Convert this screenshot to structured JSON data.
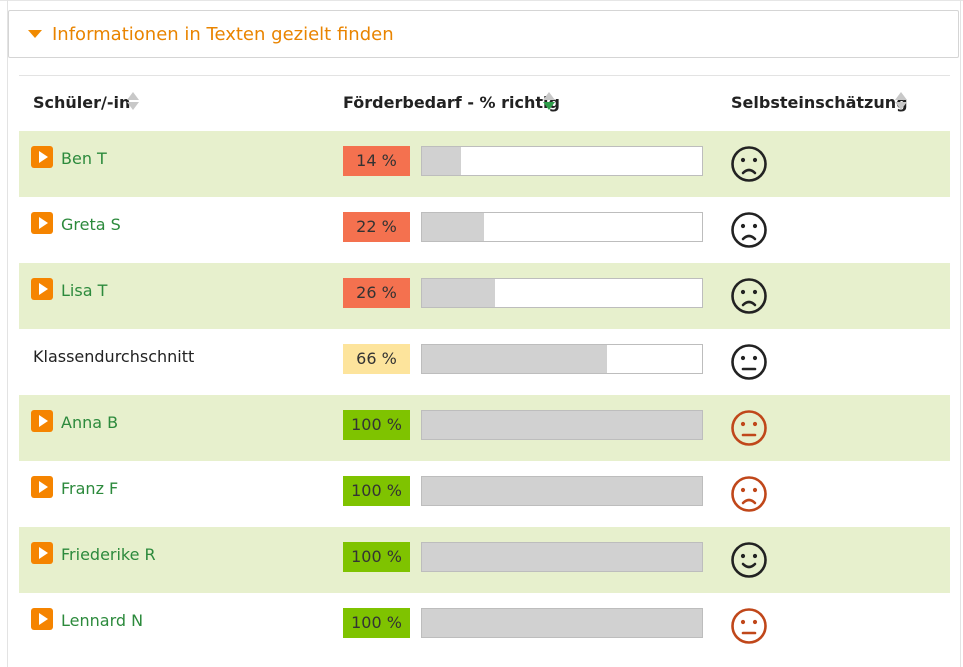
{
  "panel": {
    "title": "Informationen in Texten gezielt finden"
  },
  "table": {
    "headers": {
      "student": "Schüler/-in",
      "need": "Förderbedarf - % richtig",
      "self": "Selbsteinschätzung"
    },
    "rows": [
      {
        "name": "Ben T",
        "percent_label": "14 %",
        "percent": 14,
        "level": "low",
        "mood": "sad",
        "mood_color": "#222222",
        "has_play": true
      },
      {
        "name": "Greta S",
        "percent_label": "22 %",
        "percent": 22,
        "level": "low",
        "mood": "sad",
        "mood_color": "#222222",
        "has_play": true
      },
      {
        "name": "Lisa T",
        "percent_label": "26 %",
        "percent": 26,
        "level": "low",
        "mood": "sad",
        "mood_color": "#222222",
        "has_play": true
      },
      {
        "name": "Klassendurchschnitt",
        "percent_label": "66 %",
        "percent": 66,
        "level": "mid",
        "mood": "neutral",
        "mood_color": "#222222",
        "has_play": false
      },
      {
        "name": "Anna B",
        "percent_label": "100 %",
        "percent": 100,
        "level": "high",
        "mood": "neutral",
        "mood_color": "#c0471a",
        "has_play": true
      },
      {
        "name": "Franz F",
        "percent_label": "100 %",
        "percent": 100,
        "level": "high",
        "mood": "sad",
        "mood_color": "#c0471a",
        "has_play": true
      },
      {
        "name": "Friederike R",
        "percent_label": "100 %",
        "percent": 100,
        "level": "high",
        "mood": "happy",
        "mood_color": "#222222",
        "has_play": true
      },
      {
        "name": "Lennard N",
        "percent_label": "100 %",
        "percent": 100,
        "level": "high",
        "mood": "neutral",
        "mood_color": "#c0471a",
        "has_play": true
      }
    ]
  },
  "colors": {
    "accent": "#e98400",
    "low": "#f4714f",
    "mid": "#fde49c",
    "high": "#7fc300",
    "row_shade": "#e7f0cd",
    "name_link": "#2c8a3c"
  },
  "icons": {
    "toggle": "caret-down-icon",
    "play": "play-icon",
    "sort": "sort-icon"
  }
}
